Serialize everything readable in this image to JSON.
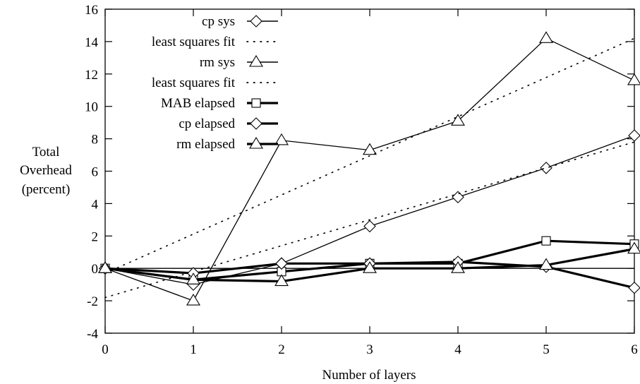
{
  "chart_data": {
    "type": "line",
    "title": "",
    "xlabel": "Number of layers",
    "ylabel": [
      "Total",
      "Overhead",
      "(percent)"
    ],
    "x": [
      0,
      1,
      2,
      3,
      4,
      5,
      6
    ],
    "xlim": [
      0,
      6
    ],
    "ylim": [
      -4,
      16
    ],
    "xticks": [
      0,
      1,
      2,
      3,
      4,
      5,
      6
    ],
    "yticks": [
      -4,
      -2,
      0,
      2,
      4,
      6,
      8,
      10,
      12,
      14,
      16
    ],
    "grid": false,
    "legend_position": "top-left",
    "zero_line": true,
    "series": [
      {
        "name": "cp sys",
        "marker": "diamond",
        "style": "solid",
        "weight": "thin",
        "values": [
          0,
          -1.0,
          0.3,
          2.6,
          4.4,
          6.2,
          8.2
        ]
      },
      {
        "name": "least squares fit",
        "marker": "none",
        "style": "dotted",
        "weight": "thin",
        "fit_line": [
          -1.8,
          7.8
        ]
      },
      {
        "name": "rm sys",
        "marker": "triangle",
        "style": "solid",
        "weight": "thin",
        "values": [
          0,
          -2.0,
          7.9,
          7.3,
          9.1,
          14.2,
          11.6
        ]
      },
      {
        "name": "least squares fit",
        "marker": "none",
        "style": "dotted",
        "weight": "thin",
        "fit_line": [
          -0.3,
          14.2
        ]
      },
      {
        "name": "MAB elapsed",
        "marker": "square",
        "style": "solid",
        "weight": "thick",
        "values": [
          0,
          -0.7,
          -0.2,
          0.3,
          0.3,
          1.7,
          1.5
        ]
      },
      {
        "name": "cp elapsed",
        "marker": "diamond",
        "style": "solid",
        "weight": "thick",
        "values": [
          0,
          -0.3,
          0.3,
          0.3,
          0.4,
          0.1,
          -1.2
        ]
      },
      {
        "name": "rm elapsed",
        "marker": "triangle",
        "style": "solid",
        "weight": "thick",
        "values": [
          0,
          -0.7,
          -0.8,
          0.0,
          0.0,
          0.2,
          1.2
        ]
      }
    ]
  }
}
